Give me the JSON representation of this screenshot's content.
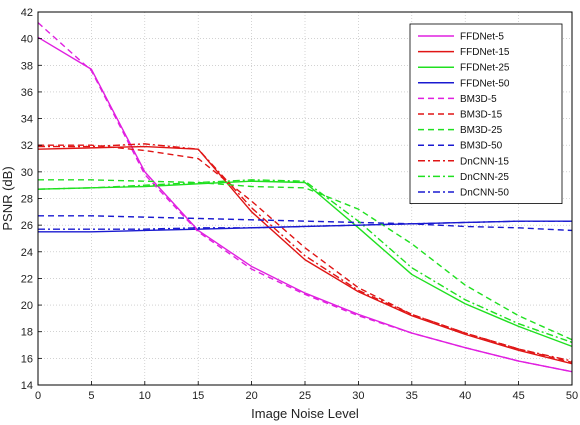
{
  "chart_data": {
    "type": "line",
    "title": "",
    "xlabel": "Image Noise Level",
    "ylabel": "PSNR (dB)",
    "xlim": [
      0,
      50
    ],
    "ylim": [
      14,
      42
    ],
    "xticks": [
      0,
      5,
      10,
      15,
      20,
      25,
      30,
      35,
      40,
      45,
      50
    ],
    "yticks": [
      14,
      16,
      18,
      20,
      22,
      24,
      26,
      28,
      30,
      32,
      34,
      36,
      38,
      40,
      42
    ],
    "grid": true,
    "legend_position": "top-right",
    "x": [
      0,
      5,
      10,
      15,
      20,
      25,
      30,
      35,
      40,
      45,
      50
    ],
    "series": [
      {
        "name": "FFDNet-5",
        "color": "#e020e0",
        "dash": "solid",
        "values": [
          40.1,
          37.7,
          30.0,
          25.6,
          22.9,
          20.9,
          19.3,
          17.9,
          16.8,
          15.8,
          15.0
        ]
      },
      {
        "name": "FFDNet-15",
        "color": "#e01515",
        "dash": "solid",
        "values": [
          31.7,
          31.8,
          31.9,
          31.7,
          27.0,
          23.4,
          21.0,
          19.2,
          17.8,
          16.6,
          15.6
        ]
      },
      {
        "name": "FFDNet-25",
        "color": "#20e020",
        "dash": "solid",
        "values": [
          28.7,
          28.8,
          28.9,
          29.1,
          29.3,
          29.2,
          25.8,
          22.3,
          20.1,
          18.4,
          16.9
        ]
      },
      {
        "name": "FFDNet-50",
        "color": "#1a1ad0",
        "dash": "solid",
        "values": [
          25.5,
          25.5,
          25.6,
          25.7,
          25.8,
          25.9,
          26.0,
          26.1,
          26.2,
          26.3,
          26.3
        ]
      },
      {
        "name": "BM3D-5",
        "color": "#e020e0",
        "dash": "dashed",
        "values": [
          41.2,
          37.6,
          29.8,
          25.5,
          22.7,
          20.8,
          19.2,
          17.9,
          16.8,
          15.8,
          15.0
        ]
      },
      {
        "name": "BM3D-15",
        "color": "#e01515",
        "dash": "dashed",
        "values": [
          32.0,
          32.0,
          31.6,
          31.0,
          27.8,
          24.3,
          21.3,
          19.3,
          17.9,
          16.7,
          15.7
        ]
      },
      {
        "name": "BM3D-25",
        "color": "#20e020",
        "dash": "dashed",
        "values": [
          29.4,
          29.4,
          29.3,
          29.2,
          28.9,
          28.8,
          27.2,
          24.6,
          21.5,
          19.2,
          17.4
        ]
      },
      {
        "name": "BM3D-50",
        "color": "#1a1ad0",
        "dash": "dashed",
        "values": [
          26.7,
          26.7,
          26.6,
          26.5,
          26.4,
          26.3,
          26.2,
          26.1,
          25.9,
          25.8,
          25.6
        ]
      },
      {
        "name": "DnCNN-15",
        "color": "#e01515",
        "dash": "dashdot",
        "values": [
          31.9,
          31.9,
          32.1,
          31.7,
          27.3,
          23.7,
          21.1,
          19.3,
          17.9,
          16.7,
          15.8
        ]
      },
      {
        "name": "DnCNN-25",
        "color": "#20e020",
        "dash": "dashdot",
        "values": [
          28.7,
          28.8,
          29.0,
          29.2,
          29.4,
          29.3,
          26.3,
          22.8,
          20.4,
          18.6,
          17.2
        ]
      },
      {
        "name": "DnCNN-50",
        "color": "#1a1ad0",
        "dash": "dashdot",
        "values": [
          25.7,
          25.7,
          25.7,
          25.8,
          25.8,
          25.9,
          26.0,
          26.1,
          26.2,
          26.3,
          26.3
        ]
      }
    ]
  }
}
